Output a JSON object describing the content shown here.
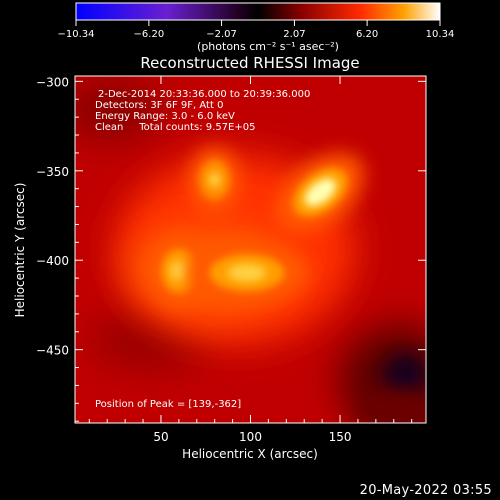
{
  "colorbar": {
    "ticks": [
      "−10.34",
      "−6.20",
      "−2.07",
      "2.07",
      "6.20",
      "10.34"
    ],
    "units": "(photons cm⁻² s⁻¹ asec⁻²)",
    "range": [
      -10.34,
      10.34
    ]
  },
  "chart_data": {
    "type": "heatmap",
    "title": "Reconstructed RHESSI Image",
    "xlabel": "Heliocentric X (arcsec)",
    "ylabel": "Heliocentric Y (arcsec)",
    "xlim": [
      2,
      198
    ],
    "ylim": [
      -491,
      -297
    ],
    "xticks": [
      "50",
      "100",
      "150"
    ],
    "yticks": [
      "−300",
      "−350",
      "−400",
      "−450"
    ],
    "xtick_values": [
      50,
      100,
      150
    ],
    "ytick_values": [
      -300,
      -350,
      -400,
      -450
    ],
    "colormap": "red-temperature",
    "sources": [
      {
        "x": 139,
        "y": -362,
        "intensity": 10.34
      },
      {
        "x": 60,
        "y": -406,
        "intensity": 8.8
      },
      {
        "x": 98,
        "y": -407,
        "intensity": 9.0
      },
      {
        "x": 80,
        "y": -355,
        "intensity": 7.0
      }
    ],
    "annotations": {
      "line1": "2-Dec-2014 20:33:36.000 to 20:39:36.000",
      "line2": "Detectors: 3F 6F 9F, Att 0",
      "line3": "Energy Range: 3.0 - 6.0 keV",
      "line4": "Clean     Total counts: 9.57E+05",
      "peak": "Position of Peak = [139,-362]"
    }
  },
  "timestamp": "20-May-2022 03:55"
}
